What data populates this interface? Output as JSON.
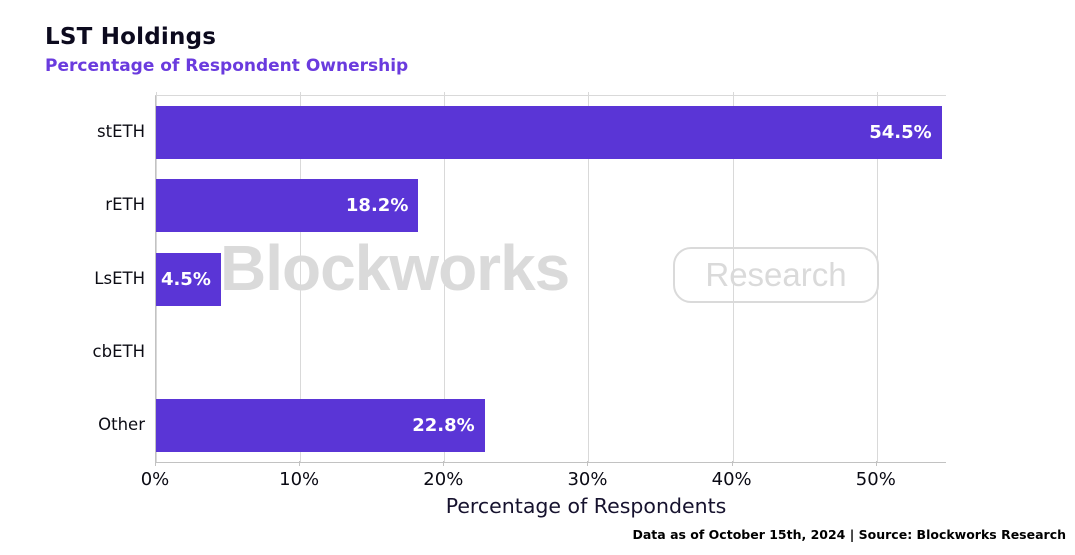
{
  "title": "LST Holdings",
  "subtitle": "Percentage of Respondent Ownership",
  "watermark": {
    "brand": "Blockworks",
    "badge": "Research"
  },
  "footer": "Data as of October 15th, 2024 | Source: Blockworks Research",
  "colors": {
    "bar": "#5a35d6",
    "title": "#0c0a1e",
    "subtitle": "#6a3bde",
    "grid": "#d9d9d9",
    "spine": "#c2c2c2",
    "watermark": "#dadada",
    "value_label": "#ffffff"
  },
  "chart_data": {
    "type": "bar",
    "orientation": "horizontal",
    "title": "LST Holdings",
    "subtitle": "Percentage of Respondent Ownership",
    "xlabel": "Percentage of Respondents",
    "ylabel": "",
    "categories": [
      "stETH",
      "rETH",
      "LsETH",
      "cbETH",
      "Other"
    ],
    "values": [
      54.5,
      18.2,
      4.5,
      0,
      22.8
    ],
    "value_labels": [
      "54.5%",
      "18.2%",
      "4.5%",
      "",
      "22.8%"
    ],
    "xlim": [
      0,
      54.8
    ],
    "xticks": [
      "0%",
      "10%",
      "20%",
      "30%",
      "40%",
      "50%"
    ],
    "xtick_values": [
      0,
      10,
      20,
      30,
      40,
      50
    ],
    "grid": "vertical",
    "legend": "none"
  }
}
